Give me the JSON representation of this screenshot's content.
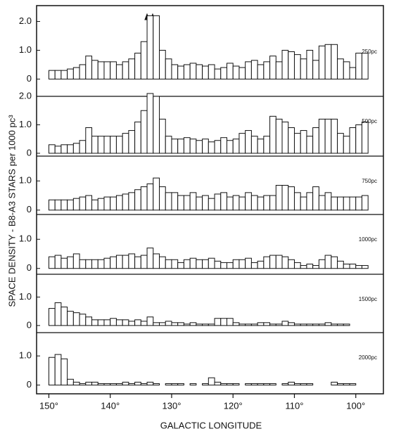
{
  "chart_data": {
    "type": "histogram",
    "ylabel": "SPACE DENSITY - B8-A3 STARS per 1000 pc³",
    "xlabel": "GALACTIC  LONGITUDE",
    "xlim": [
      152,
      95.5
    ],
    "xticks": [
      {
        "value": 150,
        "label": "150°"
      },
      {
        "value": 140,
        "label": "140°"
      },
      {
        "value": 130,
        "label": "130°"
      },
      {
        "value": 120,
        "label": "120°"
      },
      {
        "value": 110,
        "label": "110°"
      },
      {
        "value": 100,
        "label": "100°"
      }
    ],
    "bins": [
      150,
      149,
      148,
      147,
      146,
      145,
      144,
      143,
      142,
      141,
      140,
      139,
      138,
      137,
      136,
      135,
      134,
      133,
      132,
      131,
      130,
      129,
      128,
      127,
      126,
      125,
      124,
      123,
      122,
      121,
      120,
      119,
      118,
      117,
      116,
      115,
      114,
      113,
      112,
      111,
      110,
      109,
      108,
      107,
      106,
      105,
      104,
      103,
      102,
      101,
      100,
      99,
      98
    ],
    "panels": [
      {
        "name": "250pc",
        "ylim": [
          -0.6,
          2.55
        ],
        "yticks": [
          0,
          {
            "value": 1,
            "label": "1.0"
          },
          {
            "value": 2,
            "label": "2.0"
          }
        ],
        "values": [
          0.3,
          0.3,
          0.3,
          0.35,
          0.4,
          0.5,
          0.8,
          0.65,
          0.6,
          0.6,
          0.6,
          0.5,
          0.6,
          0.7,
          0.9,
          1.3,
          2.2,
          2.2,
          1.0,
          0.7,
          0.5,
          0.45,
          0.5,
          0.55,
          0.5,
          0.45,
          0.5,
          0.35,
          0.4,
          0.55,
          0.45,
          0.4,
          0.6,
          0.65,
          0.5,
          0.6,
          0.8,
          0.6,
          1.0,
          0.95,
          0.85,
          0.7,
          1.0,
          0.65,
          1.15,
          1.2,
          1.2,
          0.7,
          0.6,
          0.4,
          0.9,
          0.9
        ]
      },
      {
        "name": "500pc",
        "ylim": [
          -0.1,
          2.0
        ],
        "yticks": [
          0,
          {
            "value": 1,
            "label": "1.0"
          },
          {
            "value": 2,
            "label": "2.0"
          }
        ],
        "values": [
          0.3,
          0.25,
          0.3,
          0.3,
          0.35,
          0.45,
          0.9,
          0.6,
          0.6,
          0.6,
          0.6,
          0.6,
          0.7,
          0.8,
          1.1,
          1.5,
          2.1,
          2.0,
          1.2,
          0.6,
          0.5,
          0.5,
          0.55,
          0.5,
          0.45,
          0.5,
          0.4,
          0.45,
          0.55,
          0.45,
          0.5,
          0.7,
          0.8,
          0.6,
          0.5,
          0.6,
          1.3,
          1.2,
          1.1,
          0.9,
          0.7,
          0.8,
          0.6,
          0.9,
          1.2,
          1.2,
          1.2,
          0.7,
          0.6,
          0.9,
          1.0,
          1.1
        ]
      },
      {
        "name": "750pc",
        "ylim": [
          -0.15,
          1.85
        ],
        "yticks": [
          0,
          {
            "value": 1,
            "label": "1.0"
          }
        ],
        "values": [
          0.35,
          0.35,
          0.35,
          0.35,
          0.4,
          0.45,
          0.5,
          0.35,
          0.4,
          0.45,
          0.45,
          0.5,
          0.55,
          0.6,
          0.7,
          0.8,
          0.9,
          1.1,
          0.8,
          0.6,
          0.6,
          0.5,
          0.5,
          0.6,
          0.45,
          0.5,
          0.4,
          0.55,
          0.6,
          0.45,
          0.5,
          0.45,
          0.6,
          0.5,
          0.45,
          0.5,
          0.5,
          0.85,
          0.85,
          0.8,
          0.6,
          0.45,
          0.6,
          0.8,
          0.5,
          0.6,
          0.45,
          0.45,
          0.45,
          0.45,
          0.45,
          0.5
        ]
      },
      {
        "name": "1000pc",
        "ylim": [
          -0.2,
          1.85
        ],
        "yticks": [
          0,
          {
            "value": 1,
            "label": "1.0"
          }
        ],
        "values": [
          0.4,
          0.45,
          0.35,
          0.4,
          0.5,
          0.3,
          0.3,
          0.3,
          0.3,
          0.35,
          0.4,
          0.45,
          0.45,
          0.5,
          0.4,
          0.45,
          0.7,
          0.5,
          0.4,
          0.3,
          0.3,
          0.2,
          0.3,
          0.35,
          0.3,
          0.3,
          0.35,
          0.25,
          0.2,
          0.2,
          0.3,
          0.3,
          0.35,
          0.2,
          0.25,
          0.4,
          0.45,
          0.45,
          0.4,
          0.3,
          0.2,
          0.1,
          0.15,
          0.1,
          0.3,
          0.45,
          0.4,
          0.25,
          0.15,
          0.15,
          0.1,
          0.1
        ]
      },
      {
        "name": "1500pc",
        "ylim": [
          -0.25,
          1.8
        ],
        "yticks": [
          0,
          {
            "value": 1,
            "label": "1.0"
          }
        ],
        "values": [
          0.6,
          0.8,
          0.65,
          0.5,
          0.45,
          0.4,
          0.3,
          0.2,
          0.2,
          0.2,
          0.25,
          0.2,
          0.2,
          0.15,
          0.2,
          0.15,
          0.3,
          0.1,
          0.1,
          0.15,
          0.1,
          0.1,
          0.05,
          0.1,
          0.05,
          0.05,
          0.05,
          0.25,
          0.25,
          0.25,
          0.1,
          0.05,
          0.05,
          0.05,
          0.1,
          0.1,
          0.05,
          0.05,
          0.15,
          0.1,
          0.05,
          0.05,
          0.05,
          0.05,
          0.05,
          0.1,
          0.05,
          0.05,
          0.05,
          0.0,
          0.0,
          0.0
        ]
      },
      {
        "name": "2000pc",
        "ylim": [
          -0.3,
          1.8
        ],
        "yticks": [
          0,
          {
            "value": 1,
            "label": "1.0"
          }
        ],
        "values": [
          0.95,
          1.05,
          0.9,
          0.2,
          0.1,
          0.05,
          0.1,
          0.1,
          0.05,
          0.05,
          0.05,
          0.05,
          0.1,
          0.05,
          0.1,
          0.05,
          0.1,
          0.05,
          0.0,
          0.05,
          0.05,
          0.05,
          0.0,
          0.05,
          0.0,
          0.05,
          0.25,
          0.1,
          0.05,
          0.05,
          0.05,
          0.0,
          0.05,
          0.05,
          0.05,
          0.05,
          0.05,
          0.0,
          0.05,
          0.1,
          0.05,
          0.05,
          0.05,
          0.0,
          0.0,
          0.0,
          0.1,
          0.05,
          0.05,
          0.05,
          0.0,
          0.0
        ]
      }
    ]
  }
}
